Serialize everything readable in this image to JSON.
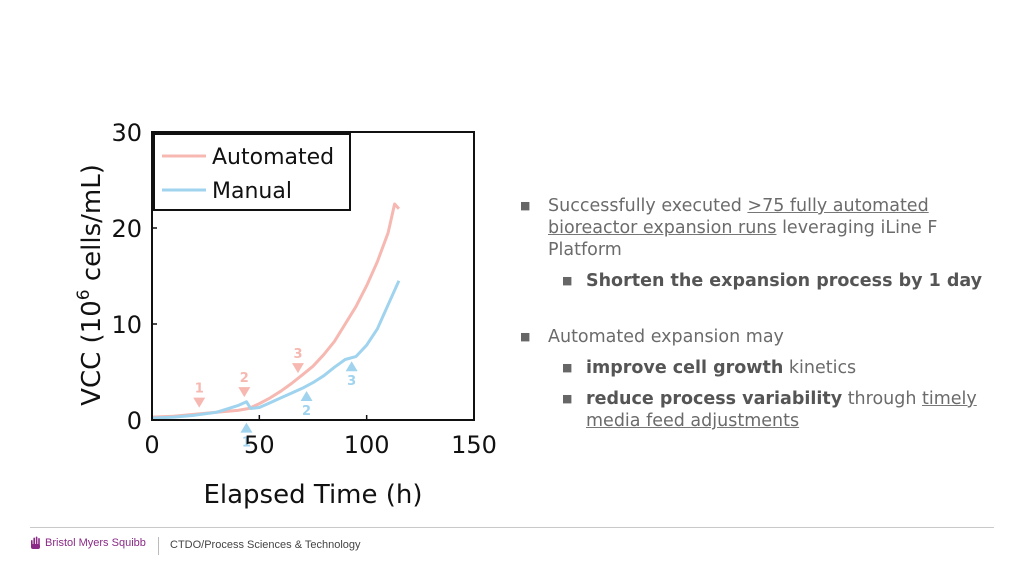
{
  "chart_data": {
    "type": "line",
    "xlabel": "Elapsed Time (h)",
    "ylabel": "VCC (10^6 cells/mL)",
    "xlim": [
      0,
      150
    ],
    "ylim": [
      0,
      30
    ],
    "xticks": [
      "0",
      "50",
      "100",
      "150"
    ],
    "yticks": [
      "0",
      "10",
      "20",
      "30"
    ],
    "legend_position": "top-left",
    "series": [
      {
        "name": "Automated",
        "color": "#f6b8b1",
        "x": [
          0,
          10,
          20,
          30,
          40,
          45,
          50,
          55,
          60,
          65,
          70,
          75,
          80,
          85,
          90,
          95,
          100,
          105,
          110,
          113,
          115
        ],
        "y": [
          0.3,
          0.4,
          0.6,
          0.8,
          1.0,
          1.2,
          1.7,
          2.3,
          3.0,
          3.8,
          4.7,
          5.6,
          6.8,
          8.2,
          10.0,
          11.8,
          14.0,
          16.5,
          19.5,
          22.5,
          22.0
        ]
      },
      {
        "name": "Manual",
        "color": "#9fd3ee",
        "x": [
          0,
          10,
          20,
          30,
          40,
          44,
          46,
          50,
          55,
          60,
          65,
          70,
          75,
          80,
          85,
          90,
          95,
          100,
          105,
          110,
          115
        ],
        "y": [
          0.2,
          0.3,
          0.5,
          0.8,
          1.5,
          1.9,
          1.2,
          1.3,
          1.8,
          2.3,
          2.8,
          3.3,
          3.9,
          4.6,
          5.5,
          6.3,
          6.6,
          7.8,
          9.5,
          12.0,
          14.5
        ]
      }
    ],
    "annotations": [
      {
        "label": "1",
        "series": "Automated",
        "x": 22,
        "y": 1.7,
        "direction": "down"
      },
      {
        "label": "2",
        "series": "Automated",
        "x": 43,
        "y": 2.8,
        "direction": "down"
      },
      {
        "label": "3",
        "series": "Automated",
        "x": 68,
        "y": 5.3,
        "direction": "down"
      },
      {
        "label": "1",
        "series": "Manual",
        "x": 44,
        "y": -0.9,
        "direction": "up"
      },
      {
        "label": "2",
        "series": "Manual",
        "x": 72,
        "y": 2.4,
        "direction": "up"
      },
      {
        "label": "3",
        "series": "Manual",
        "x": 93,
        "y": 5.5,
        "direction": "up"
      }
    ]
  },
  "bullets": [
    {
      "pre": "Successfully executed ",
      "link": ">75 fully automated bioreactor expansion runs",
      "post": " leveraging iLine F Platform",
      "sub": [
        {
          "bold": "Shorten the expansion process by 1 day",
          "rest": "",
          "link": ""
        }
      ]
    },
    {
      "text": "Automated expansion may",
      "sub": [
        {
          "bold": "improve cell growth",
          "rest": " kinetics",
          "link": ""
        },
        {
          "bold": "reduce process variability",
          "rest": " through ",
          "link": "timely media feed  adjustments"
        }
      ]
    }
  ],
  "footer": {
    "brand": "Bristol Myers Squibb",
    "dept": "CTDO/Process Sciences & Technology"
  },
  "colors": {
    "brand": "#8a2a86",
    "text": "#6b6b6b"
  }
}
